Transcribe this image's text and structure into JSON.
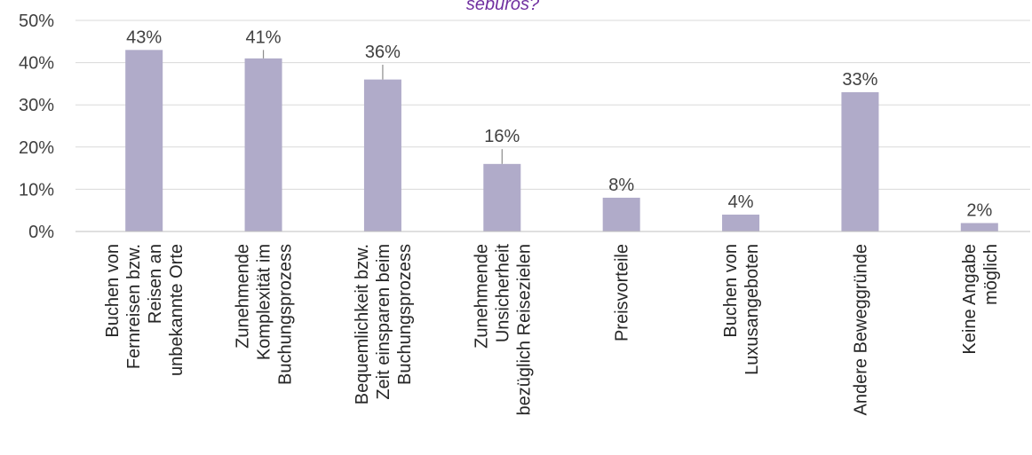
{
  "chart_data": {
    "type": "bar",
    "title_fragment": "seburos?",
    "categories": [
      [
        "Buchen von",
        "Fernreisen bzw.",
        "Reisen an",
        "unbekannte Orte"
      ],
      [
        "Zunehmende",
        "Komplexität im",
        "Buchungsprozess"
      ],
      [
        "Bequemlichkeit bzw.",
        "Zeit einsparen beim",
        "Buchungsprozess"
      ],
      [
        "Zunehmende",
        "Unsicherheit",
        "bezüglich Reisezielen"
      ],
      [
        "Preisvorteile"
      ],
      [
        "Buchen von",
        "Luxusangeboten"
      ],
      [
        "Andere Beweggründe"
      ],
      [
        "Keine Angabe",
        "möglich"
      ]
    ],
    "values": [
      43,
      41,
      36,
      16,
      8,
      4,
      33,
      2
    ],
    "data_labels": [
      "43%",
      "41%",
      "36%",
      "16%",
      "8%",
      "4%",
      "33%",
      "2%"
    ],
    "error_tops": [
      43,
      43,
      39.5,
      19.5,
      null,
      null,
      null,
      null
    ],
    "ylim": [
      0,
      50
    ],
    "yticks": [
      0,
      10,
      20,
      30,
      40,
      50
    ],
    "ytick_labels": [
      "0%",
      "10%",
      "20%",
      "30%",
      "40%",
      "50%"
    ],
    "grid": true,
    "colors": {
      "bar": "#b0abc9",
      "grid": "#d9d9d9",
      "axis": "#bfbfbf",
      "title": "#7030a0",
      "error": "#8c8c8c"
    }
  }
}
